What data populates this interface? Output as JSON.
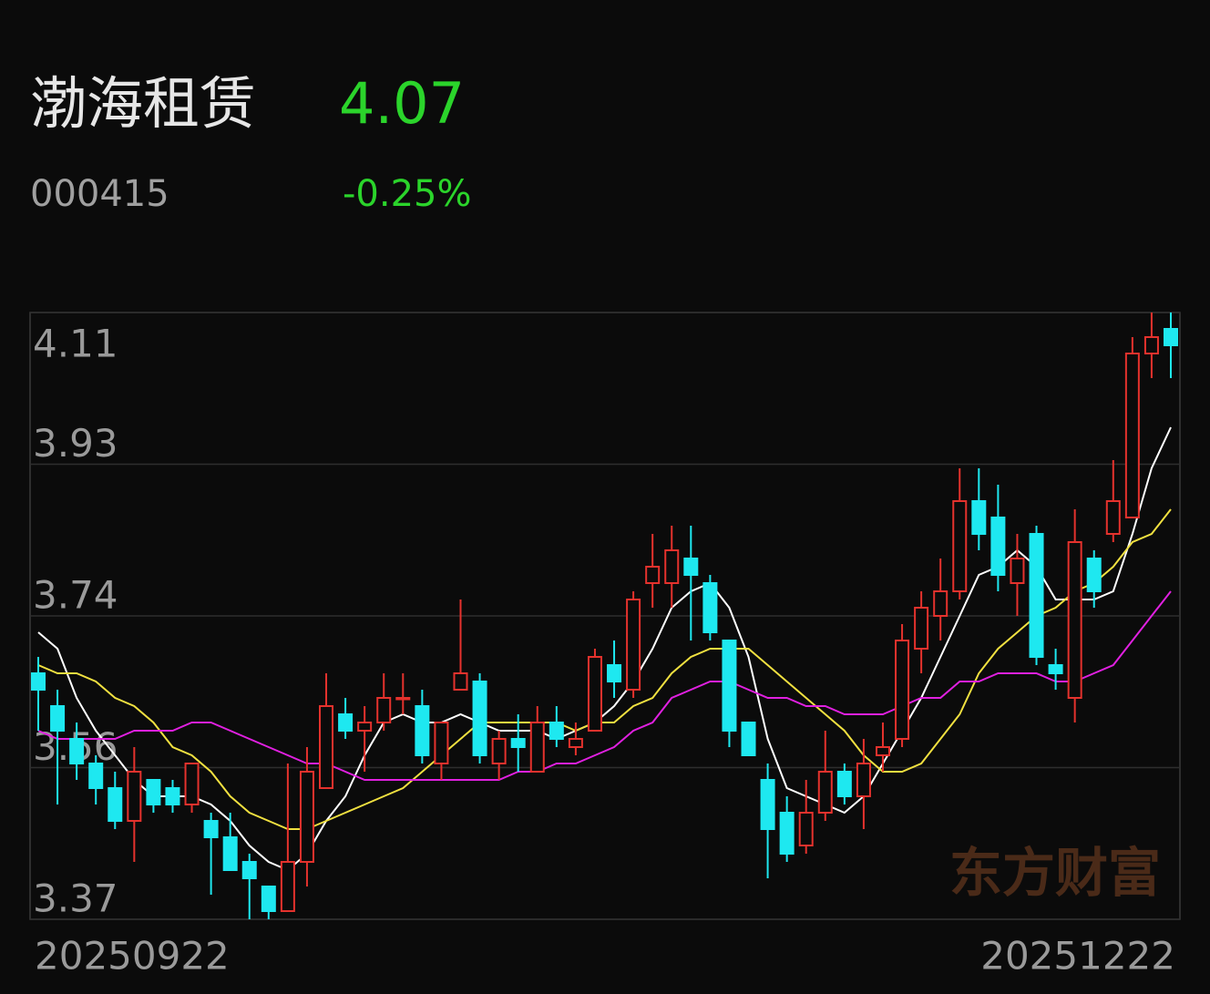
{
  "header": {
    "name": "渤海租赁",
    "price": "4.07",
    "code": "000415",
    "change": "-0.25%"
  },
  "chart_data": {
    "type": "candlestick",
    "watermark": "东方财富",
    "categories": [
      "20250922",
      null,
      null,
      null,
      null,
      null,
      null,
      null,
      null,
      null,
      null,
      null,
      null,
      null,
      null,
      null,
      null,
      null,
      null,
      null,
      null,
      null,
      null,
      null,
      null,
      null,
      null,
      null,
      null,
      null,
      null,
      null,
      null,
      null,
      null,
      null,
      null,
      null,
      null,
      null,
      null,
      null,
      null,
      null,
      null,
      null,
      null,
      null,
      null,
      null,
      null,
      null,
      null,
      null,
      null,
      null,
      null,
      null,
      null,
      "20251222"
    ],
    "open": [
      3.67,
      3.63,
      3.59,
      3.56,
      3.53,
      3.49,
      3.54,
      3.53,
      3.51,
      3.49,
      3.47,
      3.44,
      3.41,
      3.38,
      3.44,
      3.53,
      3.62,
      3.6,
      3.61,
      3.64,
      3.63,
      3.56,
      3.65,
      3.66,
      3.56,
      3.59,
      3.55,
      3.61,
      3.58,
      3.6,
      3.68,
      3.65,
      3.78,
      3.78,
      3.81,
      3.78,
      3.71,
      3.61,
      3.54,
      3.5,
      3.46,
      3.5,
      3.55,
      3.52,
      3.57,
      3.59,
      3.7,
      3.74,
      3.77,
      3.88,
      3.86,
      3.78,
      3.84,
      3.68,
      3.64,
      3.81,
      3.84,
      3.86,
      4.06,
      4.09
    ],
    "high": [
      3.69,
      3.65,
      3.61,
      3.57,
      3.55,
      3.58,
      3.54,
      3.54,
      3.56,
      3.5,
      3.5,
      3.45,
      3.41,
      3.56,
      3.58,
      3.67,
      3.64,
      3.63,
      3.67,
      3.67,
      3.65,
      3.61,
      3.76,
      3.67,
      3.6,
      3.62,
      3.63,
      3.63,
      3.61,
      3.7,
      3.71,
      3.77,
      3.84,
      3.85,
      3.85,
      3.79,
      3.71,
      3.61,
      3.56,
      3.52,
      3.54,
      3.6,
      3.56,
      3.59,
      3.61,
      3.73,
      3.77,
      3.81,
      3.92,
      3.92,
      3.9,
      3.84,
      3.85,
      3.7,
      3.87,
      3.82,
      3.93,
      4.08,
      4.11,
      4.11
    ],
    "low": [
      3.6,
      3.51,
      3.54,
      3.51,
      3.48,
      3.44,
      3.5,
      3.5,
      3.5,
      3.4,
      3.43,
      3.37,
      3.37,
      3.38,
      3.41,
      3.53,
      3.59,
      3.55,
      3.6,
      3.62,
      3.56,
      3.54,
      3.65,
      3.56,
      3.54,
      3.55,
      3.55,
      3.58,
      3.57,
      3.6,
      3.64,
      3.64,
      3.75,
      3.75,
      3.71,
      3.71,
      3.58,
      3.57,
      3.42,
      3.44,
      3.45,
      3.49,
      3.51,
      3.48,
      3.55,
      3.58,
      3.67,
      3.71,
      3.76,
      3.82,
      3.77,
      3.74,
      3.68,
      3.65,
      3.61,
      3.75,
      3.83,
      3.86,
      4.03,
      4.03
    ],
    "close": [
      3.65,
      3.6,
      3.56,
      3.53,
      3.49,
      3.55,
      3.51,
      3.51,
      3.56,
      3.47,
      3.43,
      3.42,
      3.38,
      3.44,
      3.55,
      3.63,
      3.6,
      3.61,
      3.64,
      3.64,
      3.57,
      3.61,
      3.67,
      3.57,
      3.59,
      3.58,
      3.61,
      3.59,
      3.59,
      3.69,
      3.66,
      3.76,
      3.8,
      3.82,
      3.79,
      3.72,
      3.6,
      3.57,
      3.48,
      3.45,
      3.5,
      3.55,
      3.52,
      3.56,
      3.58,
      3.71,
      3.75,
      3.77,
      3.88,
      3.84,
      3.79,
      3.81,
      3.69,
      3.67,
      3.83,
      3.77,
      3.88,
      4.06,
      4.08,
      4.07
    ],
    "up_color": "#e5322d",
    "down_color": "#1ee8f0",
    "lines": [
      {
        "color": "#ffffff",
        "values": [
          3.72,
          3.7,
          3.64,
          3.6,
          3.57,
          3.54,
          3.52,
          3.52,
          3.52,
          3.51,
          3.49,
          3.46,
          3.44,
          3.43,
          3.45,
          3.49,
          3.52,
          3.57,
          3.61,
          3.62,
          3.61,
          3.61,
          3.62,
          3.61,
          3.6,
          3.6,
          3.6,
          3.59,
          3.6,
          3.61,
          3.63,
          3.66,
          3.7,
          3.75,
          3.77,
          3.78,
          3.75,
          3.69,
          3.59,
          3.53,
          3.52,
          3.51,
          3.5,
          3.52,
          3.56,
          3.6,
          3.64,
          3.69,
          3.74,
          3.79,
          3.8,
          3.82,
          3.8,
          3.76,
          3.76,
          3.76,
          3.77,
          3.84,
          3.92,
          3.97
        ]
      },
      {
        "color": "#f0e040",
        "values": [
          3.68,
          3.67,
          3.67,
          3.66,
          3.64,
          3.63,
          3.61,
          3.58,
          3.57,
          3.55,
          3.52,
          3.5,
          3.49,
          3.48,
          3.48,
          3.49,
          3.5,
          3.51,
          3.52,
          3.53,
          3.55,
          3.57,
          3.59,
          3.61,
          3.61,
          3.61,
          3.61,
          3.61,
          3.6,
          3.61,
          3.61,
          3.63,
          3.64,
          3.67,
          3.69,
          3.7,
          3.7,
          3.7,
          3.68,
          3.66,
          3.64,
          3.62,
          3.6,
          3.57,
          3.55,
          3.55,
          3.56,
          3.59,
          3.62,
          3.67,
          3.7,
          3.72,
          3.74,
          3.75,
          3.77,
          3.78,
          3.8,
          3.83,
          3.84,
          3.87
        ]
      },
      {
        "color": "#e020e0",
        "values": [
          3.6,
          3.59,
          3.59,
          3.59,
          3.59,
          3.6,
          3.6,
          3.6,
          3.61,
          3.61,
          3.6,
          3.59,
          3.58,
          3.57,
          3.56,
          3.56,
          3.55,
          3.54,
          3.54,
          3.54,
          3.54,
          3.54,
          3.54,
          3.54,
          3.54,
          3.55,
          3.55,
          3.56,
          3.56,
          3.57,
          3.58,
          3.6,
          3.61,
          3.64,
          3.65,
          3.66,
          3.66,
          3.65,
          3.64,
          3.64,
          3.63,
          3.63,
          3.62,
          3.62,
          3.62,
          3.63,
          3.64,
          3.64,
          3.66,
          3.66,
          3.67,
          3.67,
          3.67,
          3.66,
          3.66,
          3.67,
          3.68,
          3.71,
          3.74,
          3.77
        ]
      }
    ],
    "ylim": [
      3.37,
      4.11
    ],
    "yticks": [
      3.37,
      {
        "value": 3.555,
        "label": "3.56"
      },
      3.74,
      {
        "value": 3.925,
        "label": "3.93"
      },
      4.11
    ]
  }
}
